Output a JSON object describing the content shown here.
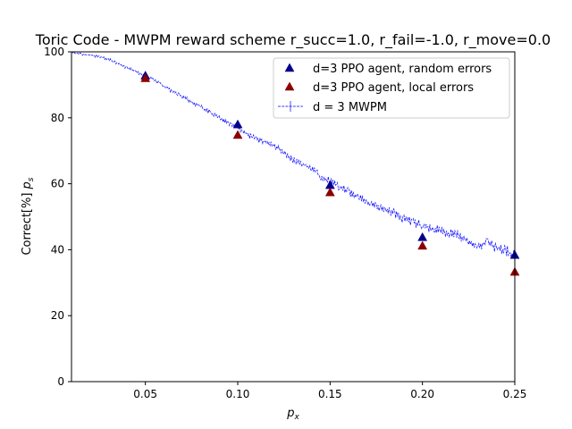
{
  "chart_data": {
    "type": "scatter",
    "title": "Toric Code - MWPM reward scheme r_succ=1.0, r_fail=-1.0, r_move=0.0",
    "xlabel": "p_x",
    "ylabel": "Correct[%] p_s",
    "xlim": [
      0.01,
      0.25
    ],
    "ylim": [
      0,
      100
    ],
    "xticks": [
      "0.05",
      "0.10",
      "0.15",
      "0.20",
      "0.25"
    ],
    "xtick_values": [
      0.05,
      0.1,
      0.15,
      0.2,
      0.25
    ],
    "yticks": [
      "0",
      "20",
      "40",
      "60",
      "80",
      "100"
    ],
    "ytick_values": [
      0,
      20,
      40,
      60,
      80,
      100
    ],
    "grid": false,
    "legend_position": "top-right",
    "series": [
      {
        "name": "d=3 PPO agent, random errors",
        "marker": "triangle",
        "color": "#00008b",
        "x": [
          0.05,
          0.1,
          0.15,
          0.2,
          0.25
        ],
        "y": [
          92.8,
          78.0,
          59.6,
          43.8,
          38.4
        ]
      },
      {
        "name": "d=3 PPO agent, local errors",
        "marker": "triangle",
        "color": "#8b0000",
        "x": [
          0.05,
          0.1,
          0.15,
          0.2,
          0.25
        ],
        "y": [
          92.0,
          74.8,
          57.4,
          41.2,
          33.3
        ]
      },
      {
        "name": "d = 3 MWPM",
        "marker": "line",
        "color": "#0000ff",
        "x": [
          0.01,
          0.015,
          0.02,
          0.025,
          0.03,
          0.035,
          0.04,
          0.045,
          0.05,
          0.055,
          0.06,
          0.065,
          0.07,
          0.075,
          0.08,
          0.085,
          0.09,
          0.095,
          0.1,
          0.105,
          0.11,
          0.115,
          0.12,
          0.125,
          0.13,
          0.135,
          0.14,
          0.145,
          0.15,
          0.155,
          0.16,
          0.165,
          0.17,
          0.175,
          0.18,
          0.185,
          0.19,
          0.195,
          0.2,
          0.205,
          0.21,
          0.215,
          0.22,
          0.225,
          0.23,
          0.235,
          0.24,
          0.245,
          0.25
        ],
        "y": [
          100.0,
          99.3,
          99.0,
          98.5,
          97.8,
          96.5,
          95.2,
          94.0,
          92.6,
          91.5,
          89.7,
          87.8,
          86.5,
          84.8,
          83.4,
          81.6,
          80.0,
          78.4,
          76.8,
          75.0,
          73.5,
          72.6,
          71.4,
          69.5,
          67.2,
          66.0,
          64.5,
          62.3,
          60.8,
          59.0,
          57.6,
          56.0,
          54.5,
          53.2,
          52.2,
          51.0,
          49.2,
          48.2,
          47.2,
          46.5,
          45.8,
          45.0,
          44.2,
          42.8,
          41.2,
          42.0,
          40.5,
          39.8,
          38.2
        ]
      }
    ]
  }
}
